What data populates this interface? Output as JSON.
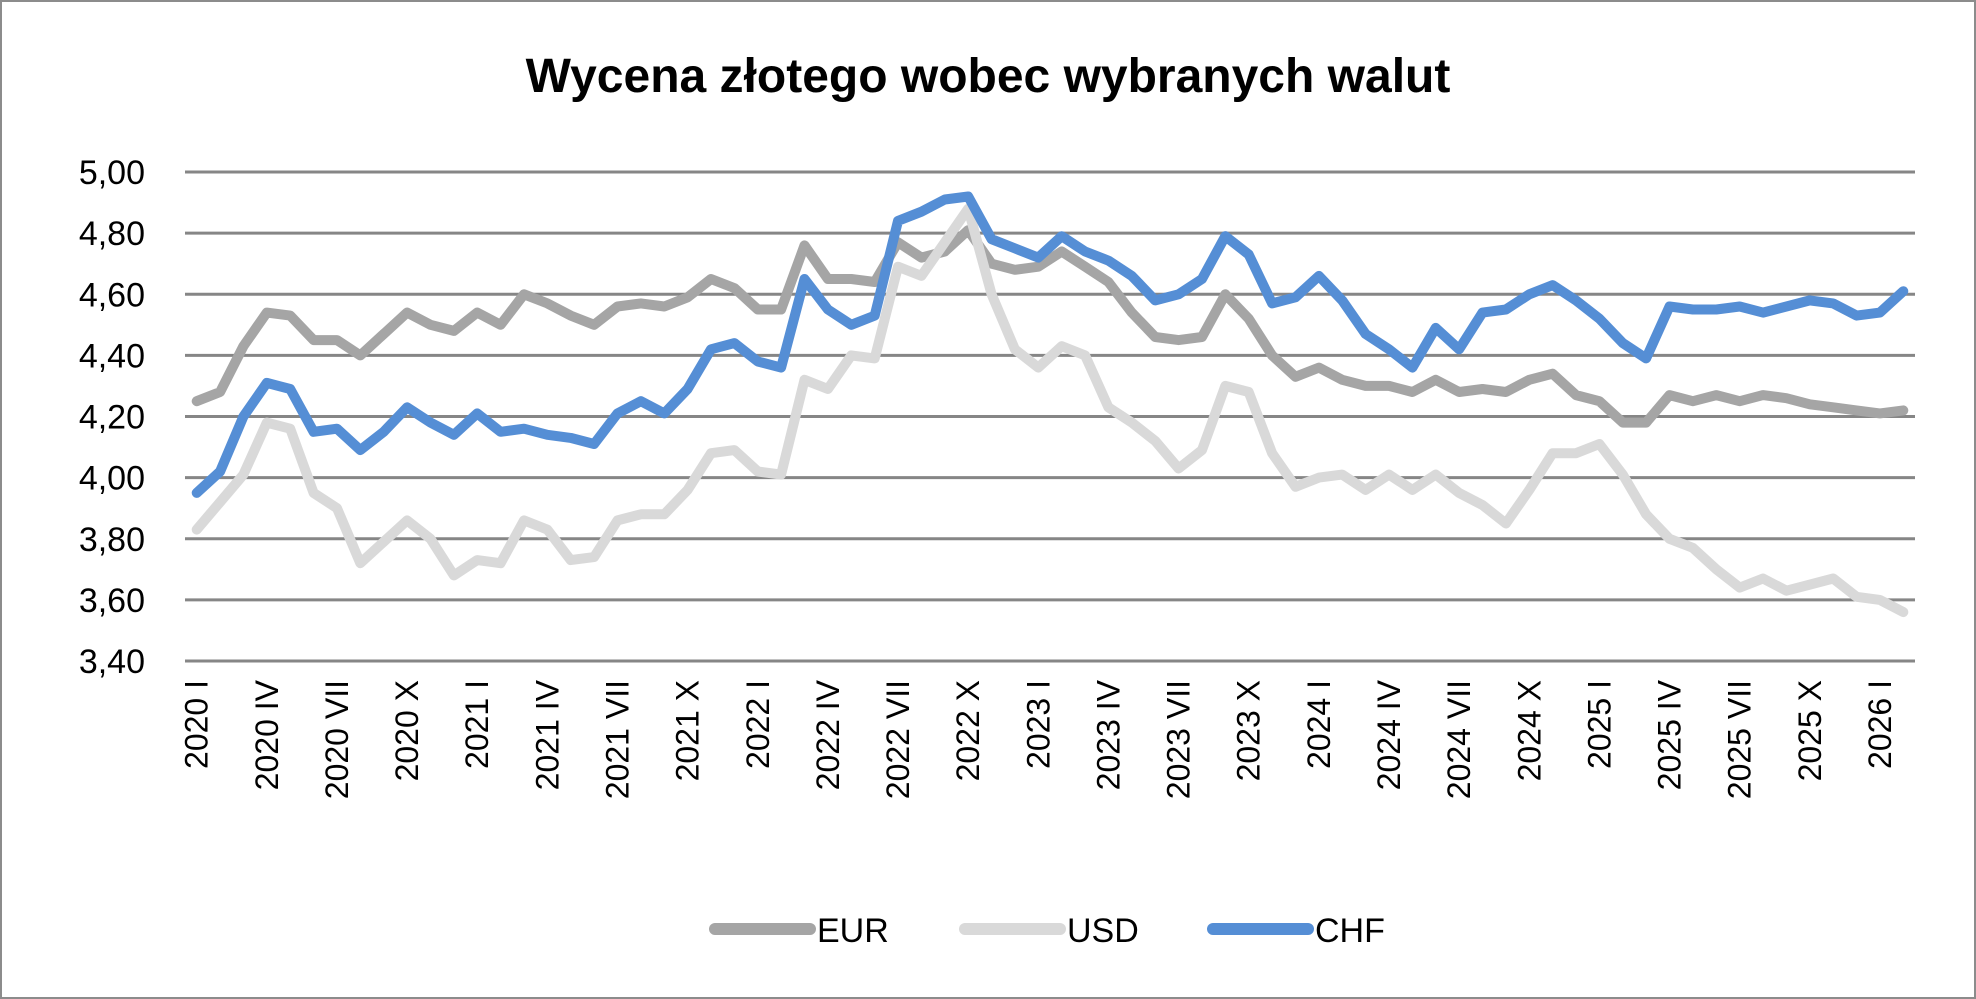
{
  "chart_data": {
    "type": "line",
    "title": "Wycena złotego wobec wybranych walut",
    "xlabel": "",
    "ylabel": "",
    "ylim": [
      3.4,
      5.0
    ],
    "y_ticks": [
      "3,40",
      "3,60",
      "3,80",
      "4,00",
      "4,20",
      "4,40",
      "4,60",
      "4,80",
      "5,00"
    ],
    "grid": true,
    "legend_position": "bottom",
    "x_frequency": "monthly",
    "x_tick_labels": [
      "2020 I",
      "2020 IV",
      "2020 VII",
      "2020 X",
      "2021 I",
      "2021 IV",
      "2021 VII",
      "2021 X",
      "2022 I",
      "2022 IV",
      "2022 VII",
      "2022 X",
      "2023 I",
      "2023 IV",
      "2023 VII",
      "2023 X",
      "2024 I",
      "2024 IV",
      "2024 VII",
      "2024 X",
      "2025 I",
      "2025 IV",
      "2025 VII",
      "2025 X",
      "2026 I"
    ],
    "series": [
      {
        "name": "EUR",
        "color": "#a5a5a5",
        "values": [
          4.25,
          4.28,
          4.43,
          4.54,
          4.53,
          4.45,
          4.45,
          4.4,
          4.47,
          4.54,
          4.5,
          4.48,
          4.54,
          4.5,
          4.6,
          4.57,
          4.53,
          4.5,
          4.56,
          4.57,
          4.56,
          4.59,
          4.65,
          4.62,
          4.55,
          4.55,
          4.76,
          4.65,
          4.65,
          4.64,
          4.77,
          4.72,
          4.74,
          4.81,
          4.7,
          4.68,
          4.69,
          4.74,
          4.69,
          4.64,
          4.54,
          4.46,
          4.45,
          4.46,
          4.6,
          4.52,
          4.4,
          4.33,
          4.36,
          4.32,
          4.3,
          4.3,
          4.28,
          4.32,
          4.28,
          4.29,
          4.28,
          4.32,
          4.34,
          4.27,
          4.25,
          4.18,
          4.18,
          4.27,
          4.25,
          4.27,
          4.25,
          4.27,
          4.26,
          4.24,
          4.23,
          4.22,
          4.21,
          4.22
        ]
      },
      {
        "name": "USD",
        "color": "#d9d9d9",
        "values": [
          3.83,
          3.92,
          4.01,
          4.18,
          4.16,
          3.95,
          3.9,
          3.72,
          3.79,
          3.86,
          3.8,
          3.68,
          3.73,
          3.72,
          3.86,
          3.83,
          3.73,
          3.74,
          3.86,
          3.88,
          3.88,
          3.96,
          4.08,
          4.09,
          4.02,
          4.01,
          4.32,
          4.29,
          4.4,
          4.39,
          4.69,
          4.66,
          4.77,
          4.88,
          4.6,
          4.42,
          4.36,
          4.43,
          4.4,
          4.23,
          4.18,
          4.12,
          4.03,
          4.09,
          4.3,
          4.28,
          4.08,
          3.97,
          4.0,
          4.01,
          3.96,
          4.01,
          3.96,
          4.01,
          3.95,
          3.91,
          3.85,
          3.96,
          4.08,
          4.08,
          4.11,
          4.01,
          3.88,
          3.8,
          3.77,
          3.7,
          3.64,
          3.67,
          3.63,
          3.65,
          3.67,
          3.61,
          3.6,
          3.56
        ]
      },
      {
        "name": "CHF",
        "color": "#558ed5",
        "values": [
          3.95,
          4.02,
          4.2,
          4.31,
          4.29,
          4.15,
          4.16,
          4.09,
          4.15,
          4.23,
          4.18,
          4.14,
          4.21,
          4.15,
          4.16,
          4.14,
          4.13,
          4.11,
          4.21,
          4.25,
          4.21,
          4.29,
          4.42,
          4.44,
          4.38,
          4.36,
          4.65,
          4.55,
          4.5,
          4.53,
          4.84,
          4.87,
          4.91,
          4.92,
          4.78,
          4.75,
          4.72,
          4.79,
          4.74,
          4.71,
          4.66,
          4.58,
          4.6,
          4.65,
          4.79,
          4.73,
          4.57,
          4.59,
          4.66,
          4.58,
          4.47,
          4.42,
          4.36,
          4.49,
          4.42,
          4.54,
          4.55,
          4.6,
          4.63,
          4.58,
          4.52,
          4.44,
          4.39,
          4.56,
          4.55,
          4.55,
          4.56,
          4.54,
          4.56,
          4.58,
          4.57,
          4.53,
          4.54,
          4.61
        ]
      }
    ]
  }
}
